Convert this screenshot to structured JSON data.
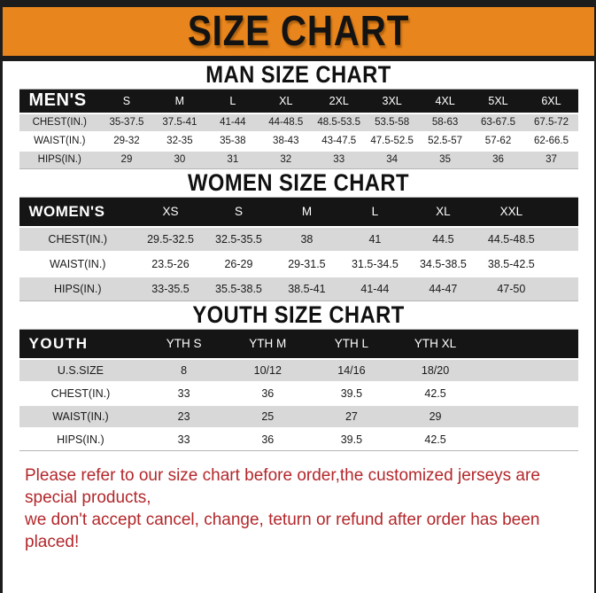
{
  "banner": {
    "title": "SIZE CHART",
    "background_color": "#E8851C",
    "bar_color": "#1C1C1C",
    "text_color": "#131313"
  },
  "sections": {
    "men": {
      "heading": "MAN SIZE CHART",
      "table": {
        "corner": "MEN'S",
        "columns": [
          "S",
          "M",
          "L",
          "XL",
          "2XL",
          "3XL",
          "4XL",
          "5XL",
          "6XL"
        ],
        "rows": [
          {
            "label": "CHEST(IN.)",
            "values": [
              "35-37.5",
              "37.5-41",
              "41-44",
              "44-48.5",
              "48.5-53.5",
              "53.5-58",
              "58-63",
              "63-67.5",
              "67.5-72"
            ]
          },
          {
            "label": "WAIST(IN.)",
            "values": [
              "29-32",
              "32-35",
              "35-38",
              "38-43",
              "43-47.5",
              "47.5-52.5",
              "52.5-57",
              "57-62",
              "62-66.5"
            ]
          },
          {
            "label": "HIPS(IN.)",
            "values": [
              "29",
              "30",
              "31",
              "32",
              "33",
              "34",
              "35",
              "36",
              "37"
            ]
          }
        ]
      }
    },
    "women": {
      "heading": "WOMEN SIZE CHART",
      "table": {
        "corner": "WOMEN'S",
        "columns": [
          "XS",
          "S",
          "M",
          "L",
          "XL",
          "XXL"
        ],
        "rows": [
          {
            "label": "CHEST(IN.)",
            "values": [
              "29.5-32.5",
              "32.5-35.5",
              "38",
              "41",
              "44.5",
              "44.5-48.5"
            ]
          },
          {
            "label": "WAIST(IN.)",
            "values": [
              "23.5-26",
              "26-29",
              "29-31.5",
              "31.5-34.5",
              "34.5-38.5",
              "38.5-42.5"
            ]
          },
          {
            "label": "HIPS(IN.)",
            "values": [
              "33-35.5",
              "35.5-38.5",
              "38.5-41",
              "41-44",
              "44-47",
              "47-50"
            ]
          }
        ]
      }
    },
    "youth": {
      "heading": "YOUTH SIZE CHART",
      "table": {
        "corner": "YOUTH",
        "columns": [
          "YTH S",
          "YTH M",
          "YTH L",
          "YTH XL"
        ],
        "rows": [
          {
            "label": "U.S.SIZE",
            "values": [
              "8",
              "10/12",
              "14/16",
              "18/20"
            ]
          },
          {
            "label": "CHEST(IN.)",
            "values": [
              "33",
              "36",
              "39.5",
              "42.5"
            ]
          },
          {
            "label": "WAIST(IN.)",
            "values": [
              "23",
              "25",
              "27",
              "29"
            ]
          },
          {
            "label": "HIPS(IN.)",
            "values": [
              "33",
              "36",
              "39.5",
              "42.5"
            ]
          }
        ]
      }
    }
  },
  "footer": {
    "line1": "Please refer to our size chart before order,the customized jerseys are special products,",
    "line2": "we don't accept cancel, change, teturn or refund after order has been placed!",
    "text_color": "#B3272B"
  },
  "style_colors": {
    "shaded_row": "#D8D8D8",
    "table_header_background": "#151515"
  }
}
